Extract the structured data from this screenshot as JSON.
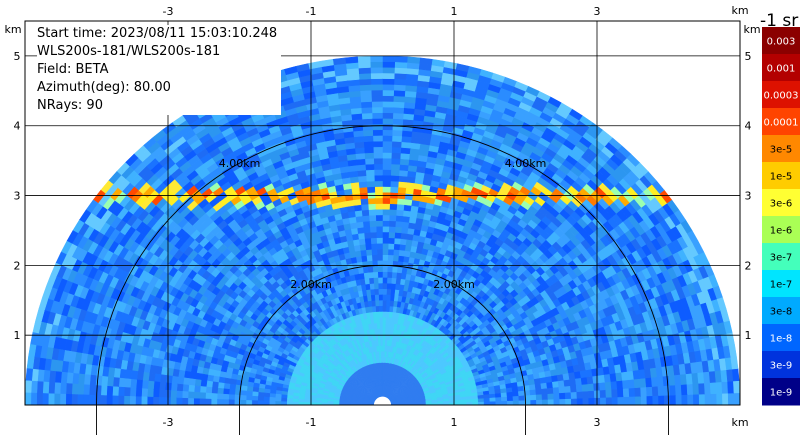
{
  "chart_data": {
    "type": "heatmap",
    "subtype": "polar radar PPI (sector scan)",
    "info": {
      "start_time": "Start time: 2023/08/11 15:03:10.248",
      "instrument": "WLS200s-181/WLS200s-181",
      "field": "Field: BETA",
      "azimuth": "Azimuth(deg): 80.00",
      "nrays": "NRays: 90"
    },
    "x_axis": {
      "unit_label": "km",
      "ticks": [
        -3,
        -1,
        1,
        3
      ],
      "range": [
        -5.0,
        5.0
      ]
    },
    "y_axis": {
      "unit_label": "km",
      "ticks": [
        1,
        2,
        3,
        4,
        5
      ],
      "range": [
        0,
        5.5
      ]
    },
    "range_rings": [
      {
        "radius_km": 2.0,
        "label": "2.00km"
      },
      {
        "radius_km": 4.0,
        "label": "4.00km"
      }
    ],
    "max_range_km": 5.0,
    "colorbar": {
      "title": "-1 sr",
      "ticks": [
        "0.003",
        "0.001",
        "0.0003",
        "0.0001",
        "3e-5",
        "1e-5",
        "3e-6",
        "1e-6",
        "3e-7",
        "1e-7",
        "3e-8",
        "1e-8",
        "3e-9",
        "1e-9"
      ],
      "colors": [
        "#8b0000",
        "#b30000",
        "#dd1100",
        "#ff4400",
        "#ff8800",
        "#ffcc00",
        "#ffff33",
        "#aaff55",
        "#44ffbb",
        "#00e5ff",
        "#00aaff",
        "#0066ff",
        "#0033dd",
        "#000088"
      ]
    },
    "features": {
      "aerosol_layer_height_km": 3.0,
      "grid": true
    }
  }
}
